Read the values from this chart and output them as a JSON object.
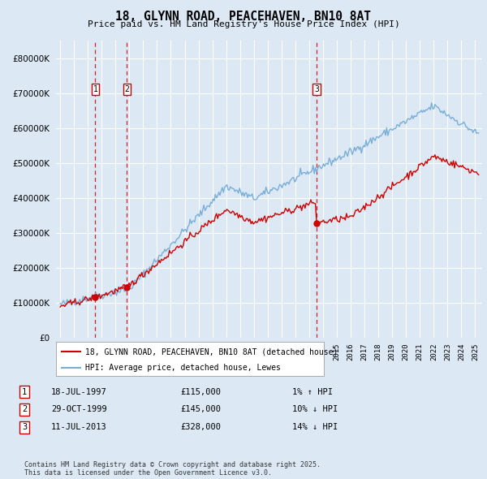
{
  "title": "18, GLYNN ROAD, PEACEHAVEN, BN10 8AT",
  "subtitle": "Price paid vs. HM Land Registry's House Price Index (HPI)",
  "ylabel_values": [
    0,
    100000,
    200000,
    300000,
    400000,
    500000,
    600000,
    700000,
    800000
  ],
  "ylim": [
    0,
    850000
  ],
  "xlim_start": 1994.7,
  "xlim_end": 2025.5,
  "bg_color": "#dce9f5",
  "plot_bg_color": "#dce9f5",
  "grid_color": "#ffffff",
  "legend_entries": [
    "18, GLYNN ROAD, PEACEHAVEN, BN10 8AT (detached house)",
    "HPI: Average price, detached house, Lewes"
  ],
  "red_line_color": "#cc0000",
  "blue_line_color": "#7aaed6",
  "sale_points": [
    {
      "year": 1997.54,
      "price": 115000,
      "label": "1"
    },
    {
      "year": 1999.83,
      "price": 145000,
      "label": "2"
    },
    {
      "year": 2013.53,
      "price": 328000,
      "label": "3"
    }
  ],
  "vline_color": "#cc0000",
  "annotations": [
    {
      "label": "1",
      "date": "18-JUL-1997",
      "price": "£115,000",
      "hpi": "1% ↑ HPI"
    },
    {
      "label": "2",
      "date": "29-OCT-1999",
      "price": "£145,000",
      "hpi": "10% ↓ HPI"
    },
    {
      "label": "3",
      "date": "11-JUL-2013",
      "price": "£328,000",
      "hpi": "14% ↓ HPI"
    }
  ],
  "footer": "Contains HM Land Registry data © Crown copyright and database right 2025.\nThis data is licensed under the Open Government Licence v3.0."
}
